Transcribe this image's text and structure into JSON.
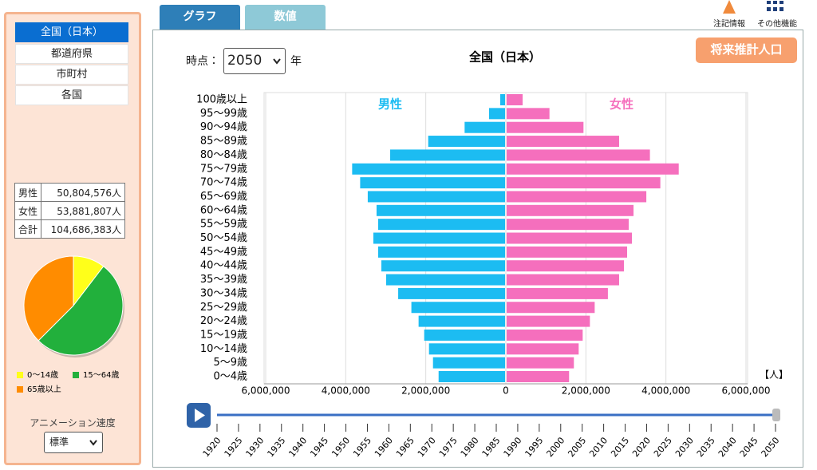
{
  "tabs": [
    "グラフ",
    "数値"
  ],
  "header": {
    "notes": "注記情報",
    "more": "その他機能",
    "time_label": "時点：",
    "year": "2050",
    "year_unit": "年",
    "future_button": "将来推計人口"
  },
  "sidebar": {
    "regions": [
      "全国（日本）",
      "都道府県",
      "市町村",
      "各国"
    ],
    "totals": {
      "rows": [
        [
          "男性",
          "50,804,576人"
        ],
        [
          "女性",
          "53,881,807人"
        ],
        [
          "合計",
          "104,686,383人"
        ]
      ]
    },
    "anim_label": "アニメーション速度",
    "anim_speed": "標準"
  },
  "chart_data": [
    {
      "type": "pyramid",
      "title": "全国（日本）",
      "categories": [
        "100歳以上",
        "95～99歳",
        "90～94歳",
        "85～89歳",
        "80～84歳",
        "75～79歳",
        "70～74歳",
        "65～69歳",
        "60～64歳",
        "55～59歳",
        "50～54歳",
        "45～49歳",
        "40～44歳",
        "35～39歳",
        "30～34歳",
        "25～29歳",
        "20～24歳",
        "15～19歳",
        "10～14歳",
        "5～9歳",
        "0～4歳"
      ],
      "series": [
        {
          "name": "男性",
          "color": "#1cbcf2",
          "values": [
            120000,
            400000,
            1010000,
            1920000,
            2870000,
            3820000,
            3620000,
            3430000,
            3210000,
            3170000,
            3290000,
            3170000,
            3090000,
            2970000,
            2670000,
            2340000,
            2160000,
            2020000,
            1900000,
            1800000,
            1660000
          ]
        },
        {
          "name": "女性",
          "color": "#f56fbd",
          "values": [
            400000,
            1070000,
            1920000,
            2810000,
            3580000,
            4300000,
            3840000,
            3490000,
            3170000,
            3050000,
            3130000,
            3010000,
            2930000,
            2810000,
            2530000,
            2200000,
            2080000,
            1900000,
            1800000,
            1680000,
            1560000
          ]
        }
      ],
      "xlim": [
        0,
        6000000
      ],
      "xticks": [
        0,
        {
          "value": 2000000,
          "label": "2,000,000"
        },
        {
          "value": 4000000,
          "label": "4,000,000"
        },
        {
          "value": 6000000,
          "label": "6,000,000"
        }
      ],
      "x_unit": "【人】",
      "grid": true
    },
    {
      "type": "pie",
      "categories": [
        "0～14歳",
        "15～64歳",
        "65歳以上"
      ],
      "values": [
        10.4,
        52.1,
        37.5
      ],
      "colors": [
        "#ffff1a",
        "#22b03c",
        "#ff8c00"
      ]
    }
  ],
  "timeline": {
    "years": [
      1920,
      1925,
      1930,
      1935,
      1940,
      1945,
      1950,
      1955,
      1960,
      1965,
      1970,
      1975,
      1980,
      1985,
      1990,
      1995,
      2000,
      2005,
      2010,
      2015,
      2020,
      2025,
      2030,
      2035,
      2040,
      2045,
      2050
    ]
  }
}
